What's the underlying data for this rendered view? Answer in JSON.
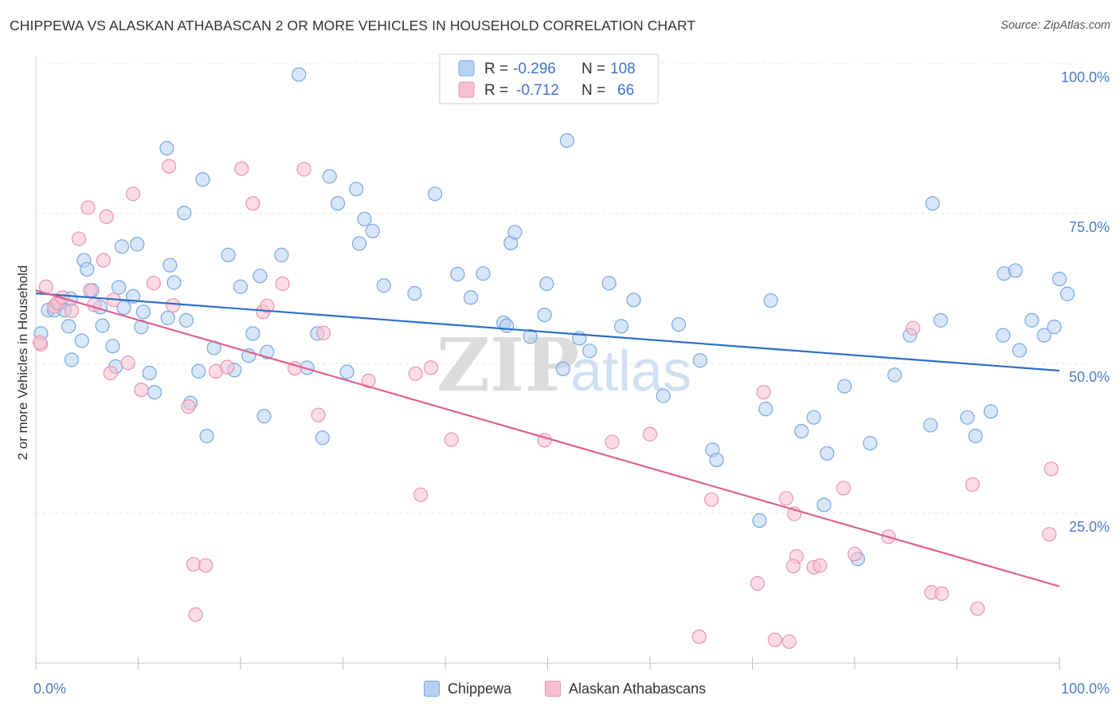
{
  "title": "CHIPPEWA VS ALASKAN ATHABASCAN 2 OR MORE VEHICLES IN HOUSEHOLD CORRELATION CHART",
  "source": "Source: ZipAtlas.com",
  "watermark": {
    "zip": "ZIP",
    "atlas": "atlas"
  },
  "colors": {
    "chippewa_fill": "#b7d1f3",
    "chippewa_stroke": "#7aa7de",
    "chippewa_line": "#2b6fc9",
    "alaskan_fill": "#f7c0d0",
    "alaskan_stroke": "#e895b0",
    "alaskan_line": "#e0608f",
    "axis_label": "#4a7cc9",
    "grid": "#e4e4e4"
  },
  "legend_box": {
    "rows": [
      {
        "r_label": "R = ",
        "r_value": "-0.296",
        "n_label": "N = ",
        "n_value": "108"
      },
      {
        "r_label": "R = ",
        "r_value": "-0.712",
        "n_label": "N = ",
        "n_value": "66"
      }
    ]
  },
  "chart_data": {
    "type": "scatter",
    "xlabel": "",
    "ylabel": "2 or more Vehicles in Household",
    "xlim": [
      0,
      100
    ],
    "ylim": [
      0,
      100
    ],
    "x_tick_labels": [
      "0.0%",
      "100.0%"
    ],
    "y_tick_labels": [
      "100.0%",
      "75.0%",
      "50.0%",
      "25.0%"
    ],
    "y_ticks": [
      100,
      75,
      50,
      25
    ],
    "grid": true,
    "legend": "top-center",
    "series": [
      {
        "name": "Chippewa",
        "trend": {
          "x0": 0,
          "y0": 61.7,
          "x1": 100,
          "y1": 48.8
        },
        "points": [
          [
            0.5,
            55
          ],
          [
            1.2,
            58.9
          ],
          [
            1.8,
            58.9
          ],
          [
            2.3,
            60
          ],
          [
            2.8,
            58.9
          ],
          [
            3.2,
            56.2
          ],
          [
            3.4,
            60.8
          ],
          [
            3.5,
            50.6
          ],
          [
            4.5,
            53.8
          ],
          [
            4.7,
            67.2
          ],
          [
            5.0,
            65.7
          ],
          [
            5.5,
            62.2
          ],
          [
            6.3,
            59.4
          ],
          [
            6.5,
            56.3
          ],
          [
            7.5,
            52.9
          ],
          [
            7.8,
            49.5
          ],
          [
            8.1,
            62.7
          ],
          [
            8.4,
            69.5
          ],
          [
            8.6,
            59.3
          ],
          [
            9.5,
            61.2
          ],
          [
            9.9,
            69.9
          ],
          [
            10.3,
            56.1
          ],
          [
            10.5,
            58.6
          ],
          [
            11.1,
            48.4
          ],
          [
            11.6,
            45.2
          ],
          [
            12.8,
            85.9
          ],
          [
            12.9,
            57.6
          ],
          [
            13.1,
            66.4
          ],
          [
            13.5,
            63.5
          ],
          [
            14.5,
            75.1
          ],
          [
            14.7,
            57.2
          ],
          [
            15.1,
            43.4
          ],
          [
            15.9,
            48.7
          ],
          [
            16.3,
            80.7
          ],
          [
            16.7,
            37.9
          ],
          [
            17.4,
            52.6
          ],
          [
            18.8,
            68.1
          ],
          [
            19.4,
            48.9
          ],
          [
            20.0,
            62.8
          ],
          [
            20.8,
            51.3
          ],
          [
            21.2,
            55
          ],
          [
            21.9,
            64.6
          ],
          [
            22.3,
            41.2
          ],
          [
            22.6,
            51.9
          ],
          [
            24.0,
            68.1
          ],
          [
            25.7,
            98.2
          ],
          [
            26.5,
            49.3
          ],
          [
            27.5,
            55
          ],
          [
            28.0,
            37.6
          ],
          [
            28.7,
            81.2
          ],
          [
            29.5,
            76.7
          ],
          [
            30.4,
            48.6
          ],
          [
            31.3,
            79.1
          ],
          [
            31.6,
            70
          ],
          [
            32.1,
            74.1
          ],
          [
            32.9,
            72.1
          ],
          [
            34.0,
            63
          ],
          [
            37.0,
            61.7
          ],
          [
            39.0,
            78.3
          ],
          [
            41.2,
            64.9
          ],
          [
            42.5,
            61
          ],
          [
            43.7,
            65
          ],
          [
            45.7,
            56.8
          ],
          [
            46.0,
            56.3
          ],
          [
            46.4,
            70.1
          ],
          [
            46.8,
            71.9
          ],
          [
            48.3,
            54.5
          ],
          [
            49.7,
            58.1
          ],
          [
            49.9,
            63.3
          ],
          [
            51.5,
            49.1
          ],
          [
            51.9,
            87.2
          ],
          [
            53.1,
            54.2
          ],
          [
            54.1,
            52.1
          ],
          [
            56.0,
            63.4
          ],
          [
            57.2,
            56.2
          ],
          [
            58.4,
            60.6
          ],
          [
            61.3,
            44.6
          ],
          [
            62.8,
            56.5
          ],
          [
            64.9,
            50.5
          ],
          [
            66.1,
            35.6
          ],
          [
            66.5,
            33.9
          ],
          [
            71.3,
            42.4
          ],
          [
            71.8,
            60.5
          ],
          [
            74.8,
            38.7
          ],
          [
            76.0,
            41
          ],
          [
            77.0,
            26.4
          ],
          [
            77.3,
            35
          ],
          [
            79.0,
            46.2
          ],
          [
            80.3,
            17.4
          ],
          [
            81.5,
            36.7
          ],
          [
            83.9,
            48.1
          ],
          [
            85.4,
            54.7
          ],
          [
            87.4,
            39.7
          ],
          [
            87.6,
            76.7
          ],
          [
            88.4,
            57.2
          ],
          [
            91.0,
            41
          ],
          [
            91.8,
            37.9
          ],
          [
            94.5,
            54.7
          ],
          [
            94.6,
            65
          ],
          [
            95.7,
            65.5
          ],
          [
            96.1,
            52.2
          ],
          [
            97.3,
            57.2
          ],
          [
            98.5,
            54.7
          ],
          [
            99.5,
            56.1
          ],
          [
            100.0,
            64.1
          ],
          [
            101.3,
            61.6
          ],
          [
            70.7,
            23.8
          ],
          [
            93.3,
            42
          ]
        ]
      },
      {
        "name": "Alaskan Athabascans",
        "trend": {
          "x0": 0,
          "y0": 62.2,
          "x1": 100,
          "y1": 12.8
        },
        "points": [
          [
            0.5,
            53.2
          ],
          [
            1.0,
            62.8
          ],
          [
            1.8,
            59.5
          ],
          [
            2.1,
            60.1
          ],
          [
            2.6,
            61
          ],
          [
            3.5,
            58.8
          ],
          [
            4.2,
            70.8
          ],
          [
            5.1,
            76
          ],
          [
            5.3,
            62.2
          ],
          [
            5.7,
            59.8
          ],
          [
            6.6,
            67.2
          ],
          [
            6.9,
            74.5
          ],
          [
            7.3,
            48.4
          ],
          [
            7.6,
            60.6
          ],
          [
            9.0,
            50.1
          ],
          [
            9.5,
            78.3
          ],
          [
            10.3,
            45.6
          ],
          [
            11.5,
            63.4
          ],
          [
            13.0,
            82.9
          ],
          [
            13.4,
            59.7
          ],
          [
            14.9,
            42.8
          ],
          [
            15.4,
            16.5
          ],
          [
            15.6,
            8.1
          ],
          [
            16.6,
            16.3
          ],
          [
            17.6,
            48.7
          ],
          [
            18.7,
            49.4
          ],
          [
            20.1,
            82.5
          ],
          [
            21.2,
            76.7
          ],
          [
            22.2,
            58.6
          ],
          [
            22.6,
            59.6
          ],
          [
            24.1,
            63.3
          ],
          [
            25.3,
            49.2
          ],
          [
            26.2,
            82.4
          ],
          [
            27.6,
            41.4
          ],
          [
            28.1,
            55.1
          ],
          [
            32.5,
            47.1
          ],
          [
            37.1,
            48.3
          ],
          [
            37.6,
            28.1
          ],
          [
            38.6,
            49.3
          ],
          [
            40.6,
            37.3
          ],
          [
            49.7,
            37.2
          ],
          [
            56.3,
            36.9
          ],
          [
            60.0,
            38.2
          ],
          [
            70.5,
            13.3
          ],
          [
            71.1,
            45.2
          ],
          [
            73.3,
            27.5
          ],
          [
            74.1,
            24.9
          ],
          [
            74.3,
            17.8
          ],
          [
            76.0,
            16
          ],
          [
            76.6,
            16.3
          ],
          [
            78.9,
            29.2
          ],
          [
            80.0,
            18.2
          ],
          [
            83.3,
            21.1
          ],
          [
            85.7,
            55.9
          ],
          [
            87.5,
            11.8
          ],
          [
            88.5,
            11.6
          ],
          [
            91.5,
            29.8
          ],
          [
            92.0,
            9.1
          ],
          [
            99.0,
            21.5
          ],
          [
            99.2,
            32.4
          ],
          [
            0.2,
            53.5
          ],
          [
            74.0,
            16.2
          ],
          [
            72.2,
            3.9
          ],
          [
            64.8,
            4.4
          ],
          [
            66.0,
            27.3
          ],
          [
            73.6,
            3.6
          ]
        ]
      }
    ]
  }
}
